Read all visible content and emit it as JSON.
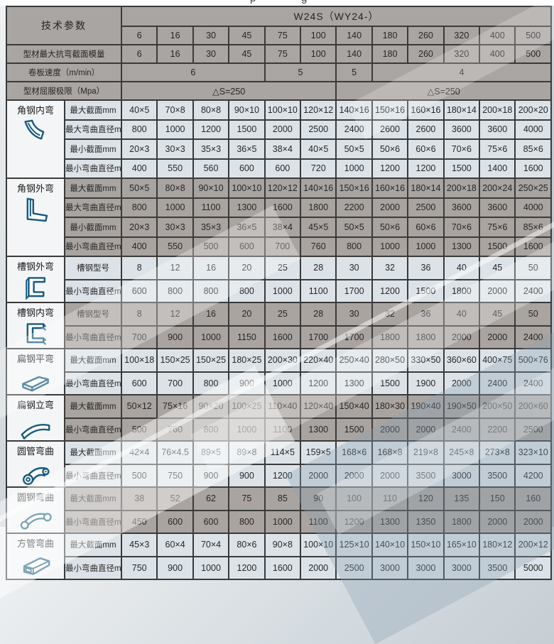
{
  "page": {
    "colors": {
      "light_row": "#dce3e8",
      "gray_row": "#a9a4a0",
      "header_gray": "#a9a5a2",
      "icon_cell_white": "#f3f5f6",
      "grid_border": "#3a3a3a",
      "icon_blue": "#185a7d"
    }
  },
  "top_strip": {
    "fragments": [
      "p",
      "g"
    ]
  },
  "table": {
    "corner_label": "技术参数",
    "model_header": "W24S（WY24-）",
    "size_columns": [
      "6",
      "16",
      "30",
      "45",
      "75",
      "100",
      "140",
      "180",
      "260",
      "320",
      "400",
      "500"
    ],
    "param_rows": [
      {
        "label": "型材最大抗弯截面模量",
        "cells": [
          {
            "text": "6",
            "span": 1
          },
          {
            "text": "16",
            "span": 1
          },
          {
            "text": "30",
            "span": 1
          },
          {
            "text": "45",
            "span": 1
          },
          {
            "text": "75",
            "span": 1
          },
          {
            "text": "100",
            "span": 1
          },
          {
            "text": "140",
            "span": 1
          },
          {
            "text": "180",
            "span": 1
          },
          {
            "text": "260",
            "span": 1
          },
          {
            "text": "320",
            "span": 1
          },
          {
            "text": "400",
            "span": 1
          },
          {
            "text": "500",
            "span": 1
          }
        ]
      },
      {
        "label": "卷板速度（m/min）",
        "cells": [
          {
            "text": "6",
            "span": 4
          },
          {
            "text": "5",
            "span": 2
          },
          {
            "text": "5",
            "span": 1
          },
          {
            "text": "4",
            "span": 5
          }
        ]
      },
      {
        "label": "型材屈服极限（Mpa）",
        "cells": [
          {
            "text": "△S=250",
            "span": 6
          },
          {
            "text": "△S=250",
            "span": 6
          }
        ]
      }
    ],
    "sections": [
      {
        "title": "角钢内弯",
        "icon": "angle-inner-bend-icon",
        "tone": "light",
        "rows": [
          {
            "label": "最大截面mm",
            "values": [
              "40×5",
              "70×8",
              "80×8",
              "90×10",
              "100×10",
              "120×12",
              "140×16",
              "150×16",
              "160×16",
              "180×14",
              "200×18",
              "200×20"
            ]
          },
          {
            "label": "最大弯曲直径mm",
            "values": [
              "800",
              "1000",
              "1200",
              "1500",
              "2000",
              "2500",
              "2400",
              "2600",
              "2600",
              "3600",
              "3600",
              "4000"
            ]
          },
          {
            "label": "最小截面mm",
            "values": [
              "20×3",
              "30×3",
              "35×3",
              "36×5",
              "38×4",
              "40×5",
              "50×5",
              "50×6",
              "60×6",
              "70×6",
              "75×6",
              "85×6"
            ]
          },
          {
            "label": "最小弯曲直径mm",
            "values": [
              "400",
              "550",
              "560",
              "600",
              "600",
              "720",
              "1000",
              "1200",
              "1200",
              "1500",
              "1400",
              "1600"
            ]
          }
        ]
      },
      {
        "title": "角钢外弯",
        "icon": "angle-outer-bend-icon",
        "tone": "gray",
        "rows": [
          {
            "label": "最大截面mm",
            "values": [
              "50×5",
              "80×8",
              "90×10",
              "100×10",
              "120×12",
              "140×16",
              "150×16",
              "160×16",
              "180×14",
              "200×18",
              "200×24",
              "250×25"
            ]
          },
          {
            "label": "最大弯曲直径mm",
            "values": [
              "800",
              "1000",
              "1100",
              "1300",
              "1600",
              "1800",
              "2200",
              "2000",
              "2500",
              "3600",
              "3600",
              "4000"
            ]
          },
          {
            "label": "最小截面mm",
            "values": [
              "20×3",
              "30×3",
              "35×3",
              "36×5",
              "38×4",
              "45×5",
              "50×5",
              "50×6",
              "60×6",
              "70×6",
              "75×6",
              "85×6"
            ]
          },
          {
            "label": "最小弯曲直径mm",
            "values": [
              "400",
              "550",
              "500",
              "600",
              "700",
              "760",
              "800",
              "1000",
              "1000",
              "1300",
              "1500",
              "1600"
            ]
          }
        ]
      },
      {
        "title": "槽钢外弯",
        "icon": "channel-outer-bend-icon",
        "tone": "light",
        "rows": [
          {
            "label": "槽钢型号",
            "values": [
              "8",
              "12",
              "16",
              "20",
              "25",
              "28",
              "30",
              "32",
              "36",
              "40",
              "45",
              "50"
            ]
          },
          {
            "label": "最小弯曲直径mm",
            "values": [
              "600",
              "800",
              "800",
              "800",
              "1000",
              "1100",
              "1700",
              "1200",
              "1500",
              "1800",
              "2000",
              "2400"
            ]
          }
        ]
      },
      {
        "title": "槽钢内弯",
        "icon": "channel-inner-bend-icon",
        "tone": "gray",
        "rows": [
          {
            "label": "槽钢型号",
            "values": [
              "8",
              "12",
              "16",
              "20",
              "25",
              "28",
              "30",
              "32",
              "36",
              "40",
              "45",
              "50"
            ]
          },
          {
            "label": "最小弯曲直径mm",
            "values": [
              "700",
              "900",
              "1000",
              "1150",
              "1600",
              "1700",
              "1700",
              "1800",
              "1800",
              "2000",
              "2000",
              "2400"
            ]
          }
        ]
      },
      {
        "title": "扁钢平弯",
        "icon": "flat-bar-flat-bend-icon",
        "tone": "light",
        "rows": [
          {
            "label": "最大截面mm",
            "values": [
              "100×18",
              "150×25",
              "150×25",
              "180×25",
              "200×30",
              "220×40",
              "250×40",
              "280×50",
              "330×50",
              "360×60",
              "400×75",
              "500×76"
            ]
          },
          {
            "label": "最小弯曲直径mm",
            "values": [
              "600",
              "700",
              "800",
              "900",
              "1000",
              "1200",
              "1300",
              "1500",
              "1900",
              "2000",
              "2400",
              "2400"
            ]
          }
        ]
      },
      {
        "title": "扁钢立弯",
        "icon": "flat-bar-edge-bend-icon",
        "tone": "gray",
        "rows": [
          {
            "label": "最大截面mm",
            "values": [
              "50×12",
              "75×16",
              "90×20",
              "100×25",
              "110×40",
              "120×40",
              "150×40",
              "180×30",
              "190×40",
              "190×50",
              "200×50",
              "200×60"
            ]
          },
          {
            "label": "最小弯曲直径mm",
            "values": [
              "500",
              "760",
              "800",
              "1000",
              "1100",
              "1300",
              "1500",
              "2000",
              "2000",
              "2400",
              "2200",
              "2500"
            ]
          }
        ]
      },
      {
        "title": "圆管弯曲",
        "icon": "round-tube-bend-icon",
        "tone": "light",
        "rows": [
          {
            "label": "最大截面mm",
            "values": [
              "42×4",
              "76×4.5",
              "89×5",
              "89×8",
              "114×5",
              "159×5",
              "168×6",
              "168×8",
              "219×8",
              "245×8",
              "273×8",
              "323×10"
            ]
          },
          {
            "label": "最小弯曲直径mm",
            "values": [
              "500",
              "750",
              "900",
              "900",
              "1200",
              "2000",
              "2000",
              "2000",
              "3500",
              "3000",
              "3500",
              "4200"
            ]
          }
        ]
      },
      {
        "title": "圆钢弯曲",
        "icon": "round-bar-bend-icon",
        "tone": "gray",
        "rows": [
          {
            "label": "最大截面mm",
            "values": [
              "38",
              "52",
              "62",
              "75",
              "85",
              "90",
              "100",
              "110",
              "120",
              "135",
              "150",
              "160"
            ]
          },
          {
            "label": "最小弯曲直径mm",
            "values": [
              "450",
              "600",
              "600",
              "800",
              "1000",
              "1100",
              "1200",
              "1300",
              "1350",
              "1800",
              "2000",
              "2000"
            ]
          }
        ]
      },
      {
        "title": "方管弯曲",
        "icon": "square-tube-bend-icon",
        "tone": "light",
        "rows": [
          {
            "label": "最大截面mm",
            "values": [
              "45×3",
              "60×4",
              "70×4",
              "80×6",
              "90×8",
              "100×10",
              "125×10",
              "140×10",
              "150×10",
              "165×10",
              "180×12",
              "200×12"
            ]
          },
          {
            "label": "最小弯曲直径mm",
            "values": [
              "750",
              "900",
              "1000",
              "1200",
              "1600",
              "2000",
              "2500",
              "3000",
              "3000",
              "3000",
              "3500",
              "5000"
            ]
          }
        ]
      }
    ]
  }
}
